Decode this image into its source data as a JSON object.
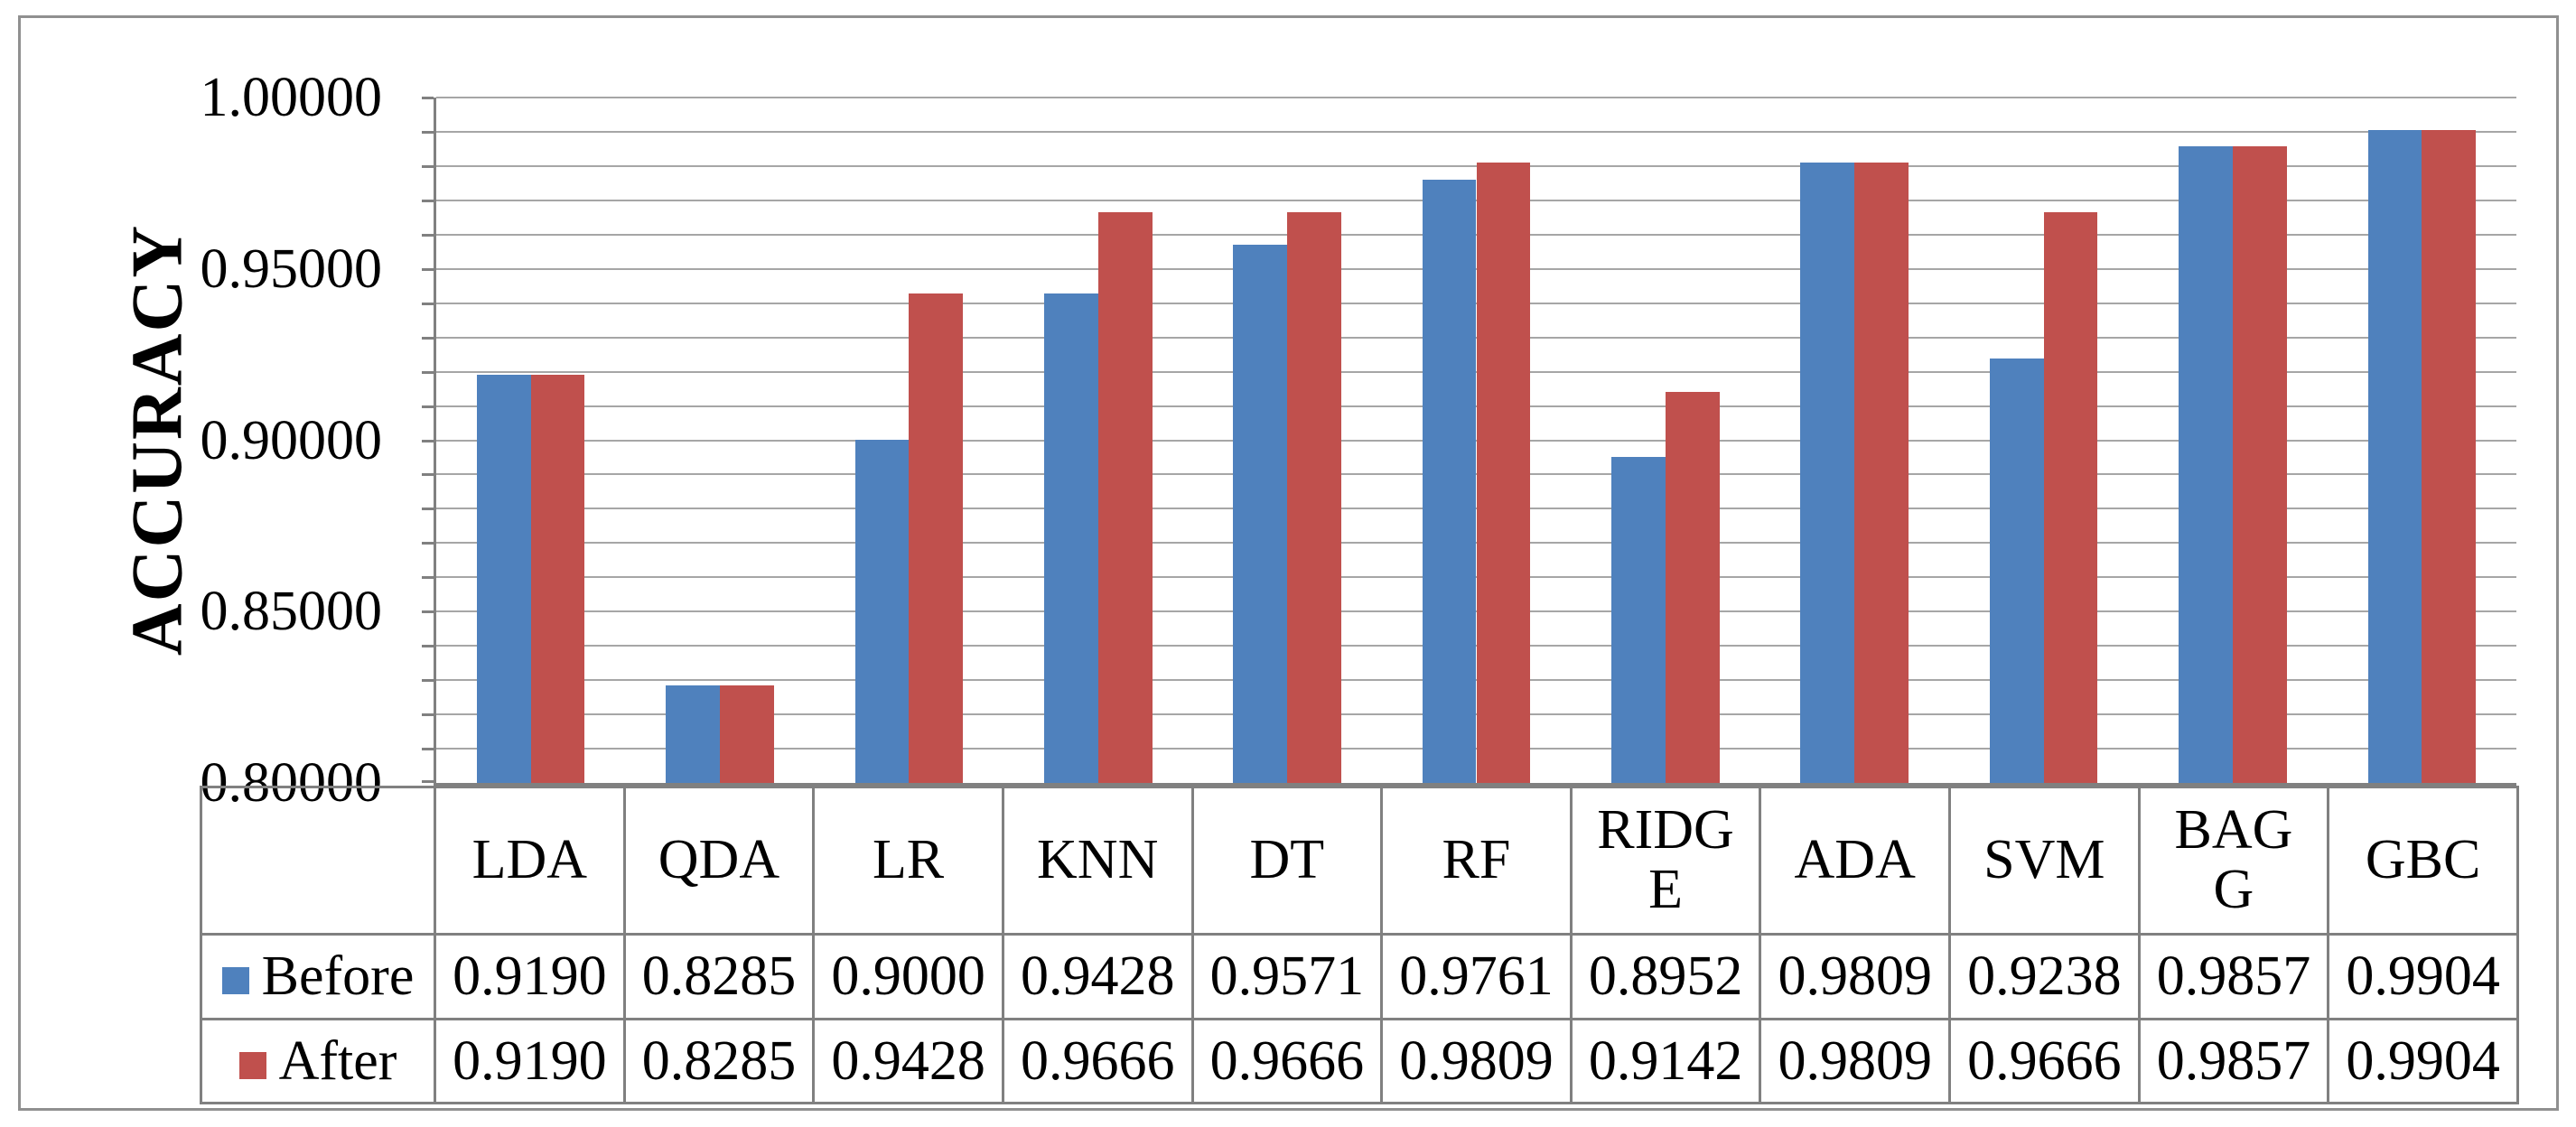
{
  "chart_data": {
    "type": "bar",
    "title": "",
    "xlabel": "",
    "ylabel": "ACCURACY",
    "categories": [
      "LDA",
      "QDA",
      "LR",
      "KNN",
      "DT",
      "RF",
      "RIDGE",
      "ADA",
      "SVM",
      "BAGG",
      "GBC"
    ],
    "category_display": [
      "LDA",
      "QDA",
      "LR",
      "KNN",
      "DT",
      "RF",
      "RIDG\nE",
      "ADA",
      "SVM",
      "BAG\nG",
      "GBC"
    ],
    "series": [
      {
        "name": "Before",
        "color": "#4F81BD",
        "values": [
          0.919,
          0.8285,
          0.9,
          0.9428,
          0.9571,
          0.9761,
          0.8952,
          0.9809,
          0.9238,
          0.9857,
          0.9904
        ]
      },
      {
        "name": "After",
        "color": "#C0504D",
        "values": [
          0.919,
          0.8285,
          0.9428,
          0.9666,
          0.9666,
          0.9809,
          0.9142,
          0.9809,
          0.9666,
          0.9857,
          0.9904
        ]
      }
    ],
    "ylim": [
      0.8,
      1.0
    ],
    "y_major_step": 0.05,
    "y_minor_step": 0.01,
    "ytick_labels": [
      "1.00000",
      "0.95000",
      "0.90000",
      "0.85000",
      "0.80000"
    ],
    "value_decimals": 4,
    "grid": "horizontal-minor-on",
    "legend_position": "data-table-left-column",
    "bar_gap_ratio": 1.5
  },
  "colors": {
    "before_bar": "#4F81BD",
    "after_bar": "#C0504D",
    "gridline": "#A6A6A6",
    "axis": "#808080",
    "table_border": "#808080",
    "frame_border": "#909090",
    "text": "#000000",
    "background": "#FFFFFF"
  }
}
